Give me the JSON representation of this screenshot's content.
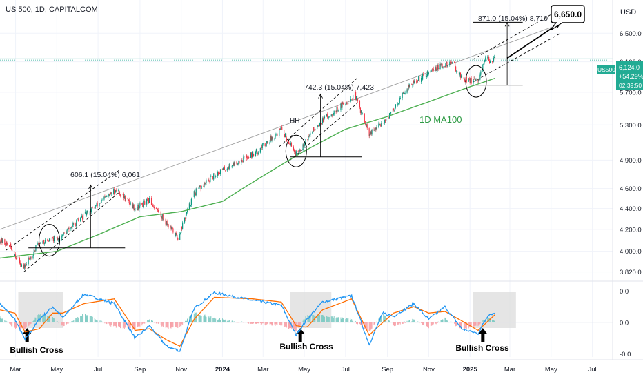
{
  "header": {
    "title": "US 500, 1D, CAPITALCOM",
    "currency": "USD"
  },
  "colors": {
    "up": "#089981",
    "down": "#f23645",
    "ma": "#4caf50",
    "macd": "#2196f3",
    "signal": "#ff6d00",
    "hist_up": "#80cbc4",
    "hist_down": "#f7a1a8",
    "badge": "#22ab94",
    "annotation": "#000000",
    "highlight": "#dcdcdc"
  },
  "price_axis": {
    "scale": "log",
    "ticks": [
      "6,500.0",
      "6,100.0",
      "5,700.0",
      "5,300.0",
      "4,900.0",
      "4,600.0",
      "4,400.0",
      "4,200.0",
      "4,000.0",
      "3,820.0"
    ]
  },
  "time_axis": {
    "ticks": [
      "Mar",
      "May",
      "Jul",
      "Sep",
      "Nov",
      "2024",
      "Mar",
      "May",
      "Jul",
      "Sep",
      "Nov",
      "2025",
      "Mar",
      "May",
      "Jul"
    ]
  },
  "price_badge": {
    "symbol": "US500",
    "price": "6,124.0",
    "change": "+54.29%",
    "countdown": "02:39:50"
  },
  "annotations": {
    "target_label": "6,650.0",
    "ma_label": "1D MA100",
    "hh_label": "HH",
    "measure_1": "606.1 (15.04%) 6,061",
    "measure_2": "742.3 (15.04%) 7,423",
    "measure_3": "871.0 (15.04%) 8,710",
    "bullish_cross_labels": [
      "Bullish Cross",
      "Bullish Cross",
      "Bullish Cross"
    ]
  },
  "oscillator_axis": {
    "ticks": [
      "0.0",
      "0.0",
      "-0.0"
    ]
  },
  "chart_data": {
    "type": "candlestick",
    "title": "US 500, 1D, CAPITALCOM",
    "price_scale": "log",
    "ylim": [
      3760,
      7000
    ],
    "x_range": [
      "2023-02-06",
      "2025-07-31"
    ],
    "price_waypoints": [
      {
        "date": "2023-02-06",
        "price": 4100
      },
      {
        "date": "2023-02-20",
        "price": 4050
      },
      {
        "date": "2023-03-13",
        "price": 3850
      },
      {
        "date": "2023-04-05",
        "price": 4080
      },
      {
        "date": "2023-05-05",
        "price": 4120
      },
      {
        "date": "2023-06-10",
        "price": 4330
      },
      {
        "date": "2023-07-28",
        "price": 4590
      },
      {
        "date": "2023-08-25",
        "price": 4400
      },
      {
        "date": "2023-09-15",
        "price": 4480
      },
      {
        "date": "2023-10-27",
        "price": 4120
      },
      {
        "date": "2023-11-20",
        "price": 4550
      },
      {
        "date": "2023-12-28",
        "price": 4780
      },
      {
        "date": "2024-02-20",
        "price": 4990
      },
      {
        "date": "2024-03-28",
        "price": 5250
      },
      {
        "date": "2024-04-19",
        "price": 4970
      },
      {
        "date": "2024-05-20",
        "price": 5300
      },
      {
        "date": "2024-07-15",
        "price": 5660
      },
      {
        "date": "2024-08-05",
        "price": 5180
      },
      {
        "date": "2024-09-05",
        "price": 5420
      },
      {
        "date": "2024-09-30",
        "price": 5760
      },
      {
        "date": "2024-11-10",
        "price": 6010
      },
      {
        "date": "2024-12-06",
        "price": 6090
      },
      {
        "date": "2024-12-20",
        "price": 5880
      },
      {
        "date": "2025-01-13",
        "price": 5830
      },
      {
        "date": "2025-01-24",
        "price": 6130
      },
      {
        "date": "2025-02-07",
        "price": 6124
      }
    ],
    "ma100_waypoints": [
      {
        "date": "2023-02-06",
        "price": 3940
      },
      {
        "date": "2023-05-01",
        "price": 4000
      },
      {
        "date": "2023-07-01",
        "price": 4150
      },
      {
        "date": "2023-09-01",
        "price": 4320
      },
      {
        "date": "2023-11-01",
        "price": 4370
      },
      {
        "date": "2024-01-01",
        "price": 4470
      },
      {
        "date": "2024-03-01",
        "price": 4730
      },
      {
        "date": "2024-05-01",
        "price": 5000
      },
      {
        "date": "2024-07-01",
        "price": 5250
      },
      {
        "date": "2024-09-01",
        "price": 5400
      },
      {
        "date": "2024-11-01",
        "price": 5580
      },
      {
        "date": "2025-01-01",
        "price": 5770
      },
      {
        "date": "2025-02-07",
        "price": 5880
      }
    ],
    "macd_waypoints": [
      {
        "date": "2023-02-06",
        "macd": 0.6,
        "signal": 0.4
      },
      {
        "date": "2023-02-28",
        "macd": 0.1,
        "signal": 0.3
      },
      {
        "date": "2023-03-15",
        "macd": -0.55,
        "signal": -0.3
      },
      {
        "date": "2023-04-05",
        "macd": 0.1,
        "signal": -0.2
      },
      {
        "date": "2023-04-25",
        "macd": 0.5,
        "signal": 0.3
      },
      {
        "date": "2023-05-10",
        "macd": 0.15,
        "signal": 0.3
      },
      {
        "date": "2023-06-10",
        "macd": 0.9,
        "signal": 0.6
      },
      {
        "date": "2023-07-25",
        "macd": 0.6,
        "signal": 0.75
      },
      {
        "date": "2023-08-25",
        "macd": -0.5,
        "signal": -0.25
      },
      {
        "date": "2023-09-15",
        "macd": -0.1,
        "signal": -0.2
      },
      {
        "date": "2023-10-10",
        "macd": -0.75,
        "signal": -0.55
      },
      {
        "date": "2023-10-30",
        "macd": -0.9,
        "signal": -0.75
      },
      {
        "date": "2023-11-20",
        "macd": 0.45,
        "signal": 0.1
      },
      {
        "date": "2023-12-20",
        "macd": 0.95,
        "signal": 0.8
      },
      {
        "date": "2024-02-15",
        "macd": 0.7,
        "signal": 0.75
      },
      {
        "date": "2024-03-28",
        "macd": 0.55,
        "signal": 0.65
      },
      {
        "date": "2024-04-19",
        "macd": -0.4,
        "signal": -0.1
      },
      {
        "date": "2024-05-05",
        "macd": 0.1,
        "signal": -0.15
      },
      {
        "date": "2024-05-28",
        "macd": 0.65,
        "signal": 0.4
      },
      {
        "date": "2024-07-10",
        "macd": 0.85,
        "signal": 0.75
      },
      {
        "date": "2024-08-05",
        "macd": -0.7,
        "signal": -0.4
      },
      {
        "date": "2024-08-25",
        "macd": 0.3,
        "signal": 0.0
      },
      {
        "date": "2024-09-10",
        "macd": 0.2,
        "signal": 0.3
      },
      {
        "date": "2024-10-10",
        "macd": 0.6,
        "signal": 0.5
      },
      {
        "date": "2024-11-01",
        "macd": 0.1,
        "signal": 0.3
      },
      {
        "date": "2024-11-25",
        "macd": 0.5,
        "signal": 0.35
      },
      {
        "date": "2024-12-20",
        "macd": -0.2,
        "signal": 0.05
      },
      {
        "date": "2025-01-13",
        "macd": -0.35,
        "signal": -0.25
      },
      {
        "date": "2025-01-28",
        "macd": 0.25,
        "signal": 0.05
      },
      {
        "date": "2025-02-07",
        "macd": 0.3,
        "signal": 0.25
      }
    ],
    "channels": [
      {
        "lower_start": {
          "date": "2023-03-13",
          "price": 3820
        },
        "lower_end": {
          "date": "2023-08-01",
          "price": 4560
        },
        "upper_start": {
          "date": "2023-02-15",
          "price": 4010
        },
        "upper_end": {
          "date": "2023-08-01",
          "price": 4790
        }
      },
      {
        "lower_start": {
          "date": "2024-04-10",
          "price": 4900
        },
        "lower_end": {
          "date": "2024-07-18",
          "price": 5560
        },
        "upper_start": {
          "date": "2024-03-25",
          "price": 5050
        },
        "upper_end": {
          "date": "2024-07-18",
          "price": 5880
        }
      },
      {
        "lower_start": {
          "date": "2025-01-05",
          "price": 5830
        },
        "lower_end": {
          "date": "2025-05-15",
          "price": 6500
        },
        "upper_start": {
          "date": "2025-01-05",
          "price": 6130
        },
        "upper_end": {
          "date": "2025-05-15",
          "price": 6860
        }
      }
    ],
    "top_trendline": {
      "start": {
        "date": "2023-02-06",
        "price": 4200
      },
      "end": {
        "date": "2025-05-05",
        "price": 6600
      }
    },
    "measurements": [
      {
        "label": "606.1 (15.04%) 6,061",
        "start_date": "2023-03-20",
        "end_date": "2023-08-10",
        "arrow_date": "2023-06-20",
        "low": 4030,
        "high": 4636
      },
      {
        "label": "742.3 (15.04%) 7,423",
        "start_date": "2024-04-10",
        "end_date": "2024-07-25",
        "arrow_date": "2024-05-25",
        "low": 4935,
        "high": 5677
      },
      {
        "label": "871.0 (15.04%) 8,710",
        "start_date": "2025-01-05",
        "end_date": "2025-03-20",
        "arrow_date": "2025-02-25",
        "low": 5790,
        "high": 6661
      }
    ],
    "circles": [
      {
        "date": "2023-04-20",
        "price": 4100
      },
      {
        "date": "2024-04-19",
        "price": 5000
      },
      {
        "date": "2025-01-10",
        "price": 5840
      }
    ],
    "projection_arrow": {
      "start": {
        "date": "2025-02-25",
        "price": 6150
      },
      "end": {
        "date": "2025-05-15",
        "price": 6660
      }
    },
    "target_price": 6650.0,
    "current_price": 6124.0,
    "highlight_boxes": [
      {
        "start_date": "2023-03-05",
        "end_date": "2023-05-10"
      },
      {
        "start_date": "2024-04-10",
        "end_date": "2024-06-10"
      },
      {
        "start_date": "2025-01-05",
        "end_date": "2025-03-10"
      }
    ],
    "bullish_cross_dates": [
      "2023-03-18",
      "2024-04-25",
      "2025-01-20"
    ]
  }
}
